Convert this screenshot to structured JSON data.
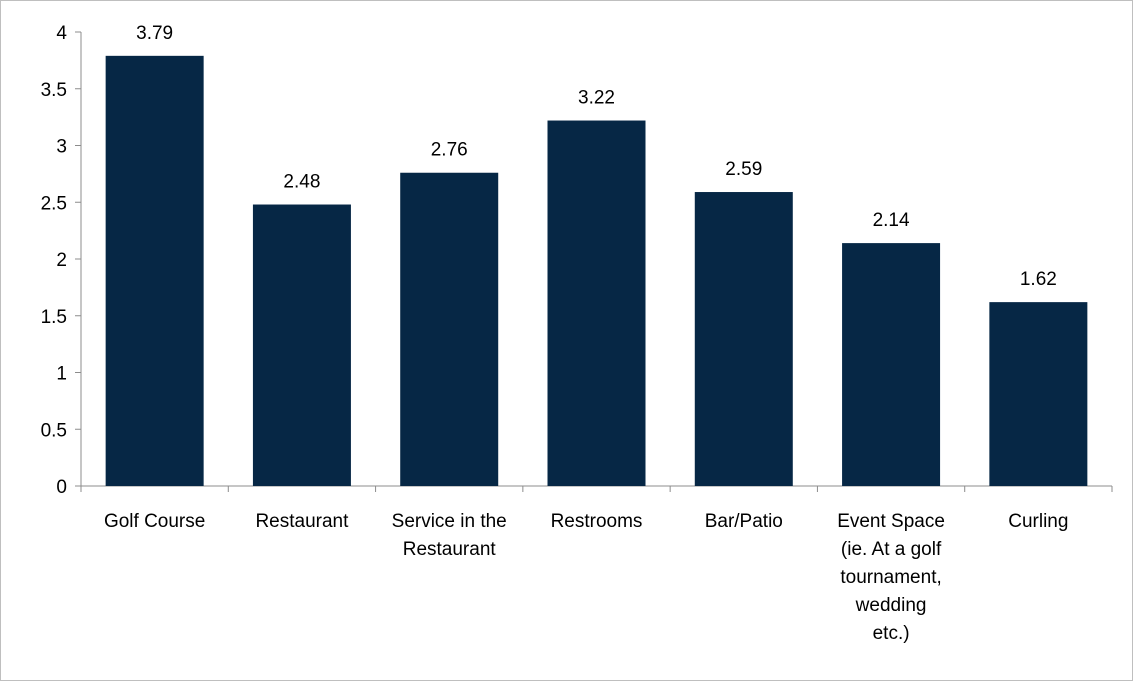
{
  "chart_data": {
    "type": "bar",
    "title": "",
    "xlabel": "",
    "ylabel": "",
    "categories": [
      [
        "Golf Course"
      ],
      [
        "Restaurant"
      ],
      [
        "Service in the",
        "Restaurant"
      ],
      [
        "Restrooms"
      ],
      [
        "Bar/Patio"
      ],
      [
        "Event Space",
        "(ie. At a golf",
        "tournament,",
        "wedding",
        "etc.)"
      ],
      [
        "Curling"
      ]
    ],
    "values": [
      3.79,
      2.48,
      2.76,
      3.22,
      2.59,
      2.14,
      1.62
    ],
    "value_labels": [
      "3.79",
      "2.48",
      "2.76",
      "3.22",
      "2.59",
      "2.14",
      "1.62"
    ],
    "ylim": [
      0,
      4
    ],
    "yticks": [
      "0",
      "0.5",
      "1",
      "1.5",
      "2",
      "2.5",
      "3",
      "3.5",
      "4"
    ],
    "grid": false,
    "legend": "none",
    "colors": {
      "bar": "#062745",
      "axis": "#8c8c8c",
      "frame": "#bfbfbf"
    }
  }
}
